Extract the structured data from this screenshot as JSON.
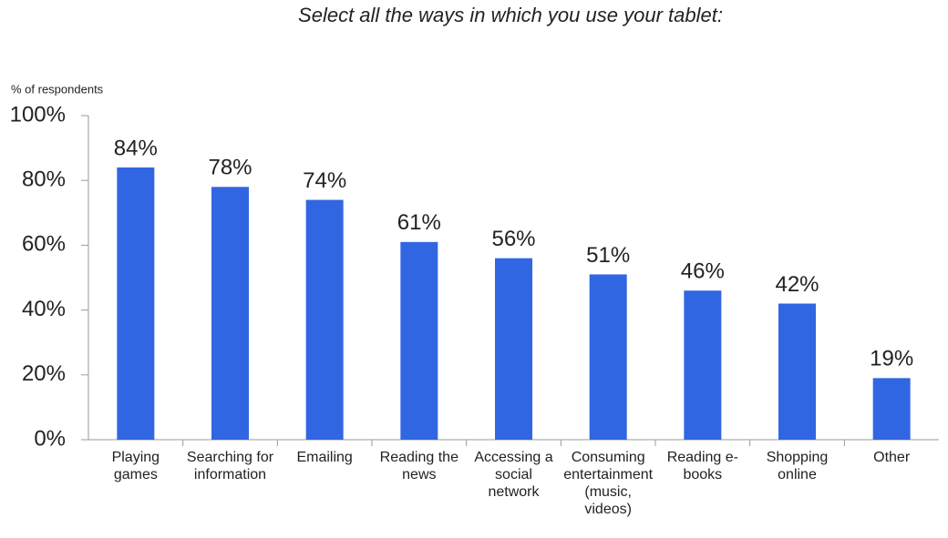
{
  "chart_data": {
    "type": "bar",
    "title": "Select all the ways in which you use your tablet:",
    "y_label": "% of respondents",
    "categories": [
      "Playing games",
      "Searching for information",
      "Emailing",
      "Reading the news",
      "Accessing a social network",
      "Consuming entertainment (music, videos)",
      "Reading e-books",
      "Shopping online",
      "Other"
    ],
    "values": [
      84,
      78,
      74,
      61,
      56,
      51,
      46,
      42,
      19
    ],
    "value_labels": [
      "84%",
      "78%",
      "74%",
      "61%",
      "56%",
      "51%",
      "46%",
      "42%",
      "19%"
    ],
    "color": "#3166e3",
    "ylim": [
      0,
      100
    ],
    "yticks": [
      {
        "value": 0,
        "label": "0%"
      },
      {
        "value": 20,
        "label": "20%"
      },
      {
        "value": 40,
        "label": "40%"
      },
      {
        "value": 60,
        "label": "60%"
      },
      {
        "value": 80,
        "label": "80%"
      },
      {
        "value": 100,
        "label": "100%"
      }
    ],
    "grid": false
  }
}
